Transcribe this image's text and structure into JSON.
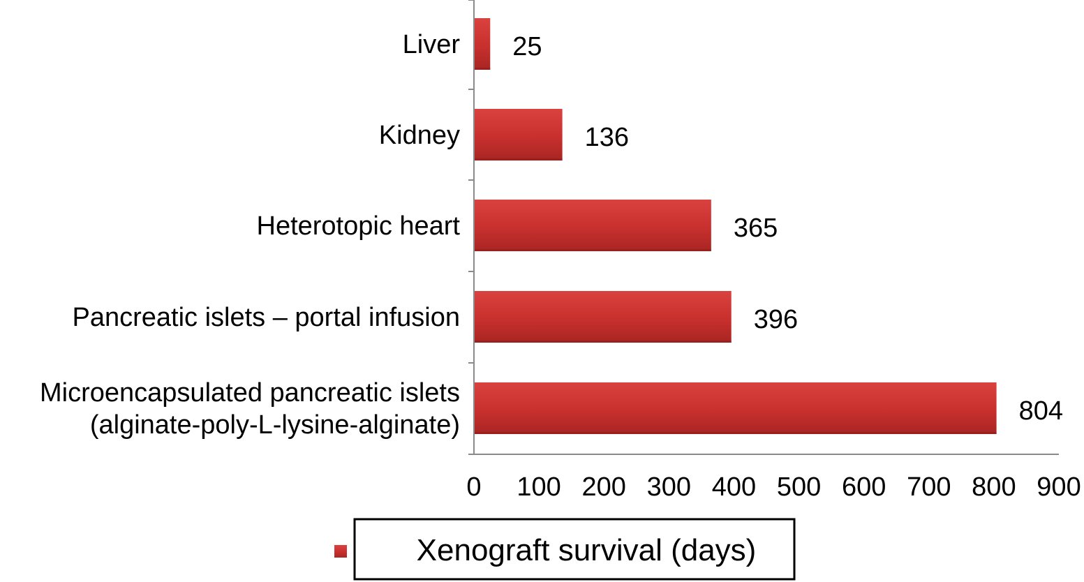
{
  "chart_data": {
    "type": "bar",
    "orientation": "horizontal",
    "categories": [
      [
        "Liver"
      ],
      [
        "Kidney"
      ],
      [
        "Heterotopic heart"
      ],
      [
        "Pancreatic islets – portal infusion"
      ],
      [
        "Microencapsulated pancreatic islets",
        "(alginate-poly-L-lysine-alginate)"
      ]
    ],
    "series": [
      {
        "name": "Xenograft survival (days)",
        "values": [
          25,
          136,
          365,
          396,
          804
        ],
        "color": "#c8302e"
      }
    ],
    "data_labels": [
      "25",
      "136",
      "365",
      "396",
      "804"
    ],
    "xlim": [
      0,
      900
    ],
    "x_ticks": [
      "0",
      "100",
      "200",
      "300",
      "400",
      "500",
      "600",
      "700",
      "800",
      "900"
    ],
    "grid": false,
    "legend": {
      "position": "bottom",
      "boxed": true
    }
  }
}
